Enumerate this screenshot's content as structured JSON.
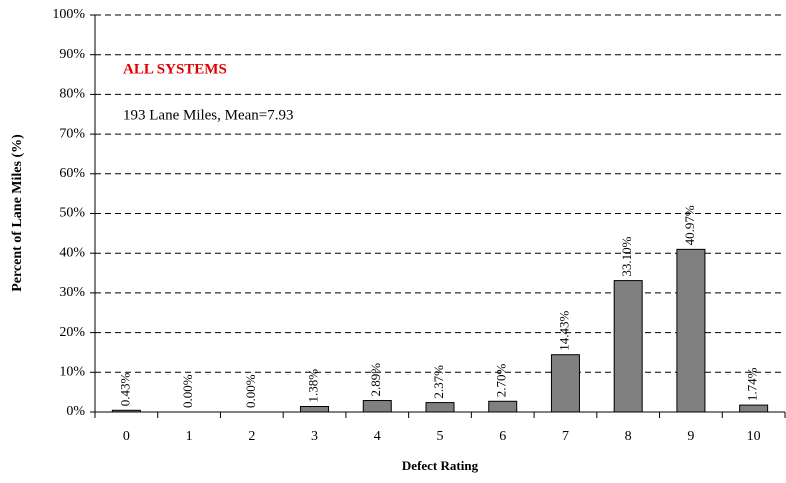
{
  "chart_data": {
    "type": "bar",
    "xlabel": "Defect Rating",
    "ylabel": "Percent of Lane Miles (%)",
    "annotations": [
      "ALL SYSTEMS",
      "193 Lane Miles, Mean=7.93"
    ],
    "categories": [
      "0",
      "1",
      "2",
      "3",
      "4",
      "5",
      "6",
      "7",
      "8",
      "9",
      "10"
    ],
    "values": [
      0.43,
      0.0,
      0.0,
      1.38,
      2.89,
      2.37,
      2.7,
      14.43,
      33.1,
      40.97,
      1.74
    ],
    "value_labels": [
      "0.43%",
      "0.00%",
      "0.00%",
      "1.38%",
      "2.89%",
      "2.37%",
      "2.70%",
      "14.43%",
      "33.10%",
      "40.97%",
      "1.74%"
    ],
    "color": "#808080",
    "ylim": [
      0,
      100
    ],
    "yticks": [
      {
        "value": 0,
        "label": "0%"
      },
      {
        "value": 10,
        "label": "10%"
      },
      {
        "value": 20,
        "label": "20%"
      },
      {
        "value": 30,
        "label": "30%"
      },
      {
        "value": 40,
        "label": "40%"
      },
      {
        "value": 50,
        "label": "50%"
      },
      {
        "value": 60,
        "label": "60%"
      },
      {
        "value": 70,
        "label": "70%"
      },
      {
        "value": 80,
        "label": "80%"
      },
      {
        "value": 90,
        "label": "90%"
      },
      {
        "value": 100,
        "label": "100%"
      }
    ],
    "grid": true
  }
}
